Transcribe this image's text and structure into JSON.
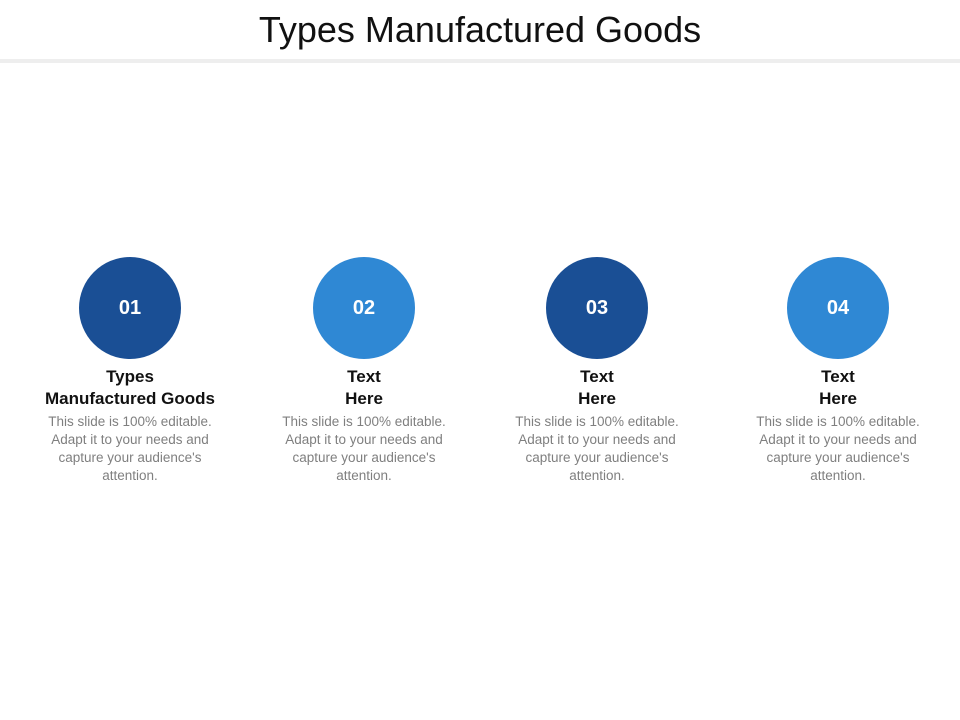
{
  "slide": {
    "title": "Types Manufactured Goods"
  },
  "items": [
    {
      "number": "01",
      "heading_lines": [
        "Types",
        "Manufactured Goods"
      ],
      "description": "This slide is 100% editable. Adapt it to your needs and capture your audience's attention.",
      "color": "#1a4f95"
    },
    {
      "number": "02",
      "heading_lines": [
        "Text",
        "Here"
      ],
      "description": "This slide is 100% editable. Adapt it to your needs and capture your audience's attention.",
      "color": "#2f88d4"
    },
    {
      "number": "03",
      "heading_lines": [
        "Text",
        "Here"
      ],
      "description": "This slide is 100% editable. Adapt it to your needs and capture your audience's attention.",
      "color": "#1a4f95"
    },
    {
      "number": "04",
      "heading_lines": [
        "Text",
        "Here"
      ],
      "description": "This slide is 100% editable. Adapt it to your needs and capture your audience's attention.",
      "color": "#2f88d4"
    }
  ]
}
